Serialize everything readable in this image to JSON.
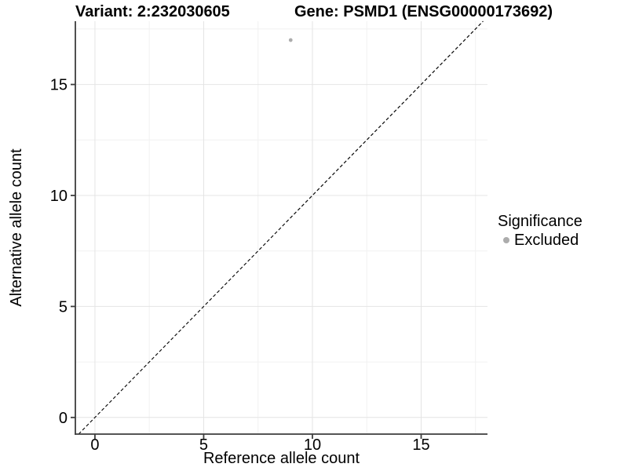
{
  "chart_data": {
    "type": "scatter",
    "title_left": "Variant: 2:232030605",
    "title_right": "Gene: PSMD1 (ENSG00000173692)",
    "xlabel": "Reference allele count",
    "ylabel": "Alternative allele count",
    "xlim": [
      -0.9,
      18.05
    ],
    "ylim": [
      -0.75,
      17.85
    ],
    "x_ticks": [
      0,
      5,
      10,
      15
    ],
    "y_ticks": [
      0,
      5,
      10,
      15
    ],
    "x_minor_ticks": [
      2.5,
      7.5,
      12.5,
      17.5
    ],
    "y_minor_ticks": [
      2.5,
      7.5,
      12.5,
      17.5
    ],
    "grid": "major-and-minor",
    "series": [
      {
        "name": "Excluded",
        "points": [
          {
            "x": 9,
            "y": 17
          }
        ],
        "color": "#acacac",
        "marker": "circle",
        "marker_radius_px": 2.4
      }
    ],
    "reference_line": {
      "description": "identity line y = x",
      "slope": 1,
      "intercept": 0,
      "style": "dashed",
      "color": "#0a0a0a"
    },
    "legend": {
      "title": "Significance",
      "position": "right",
      "items": [
        {
          "label": "Excluded",
          "color": "#acacac",
          "marker": "circle"
        }
      ]
    },
    "colors": {
      "background": "#ffffff",
      "grid_major": "#e4e4e4",
      "grid_minor": "#f1f1f1",
      "axis_line": "#3d3d3d",
      "tick_label": "#000000"
    }
  }
}
